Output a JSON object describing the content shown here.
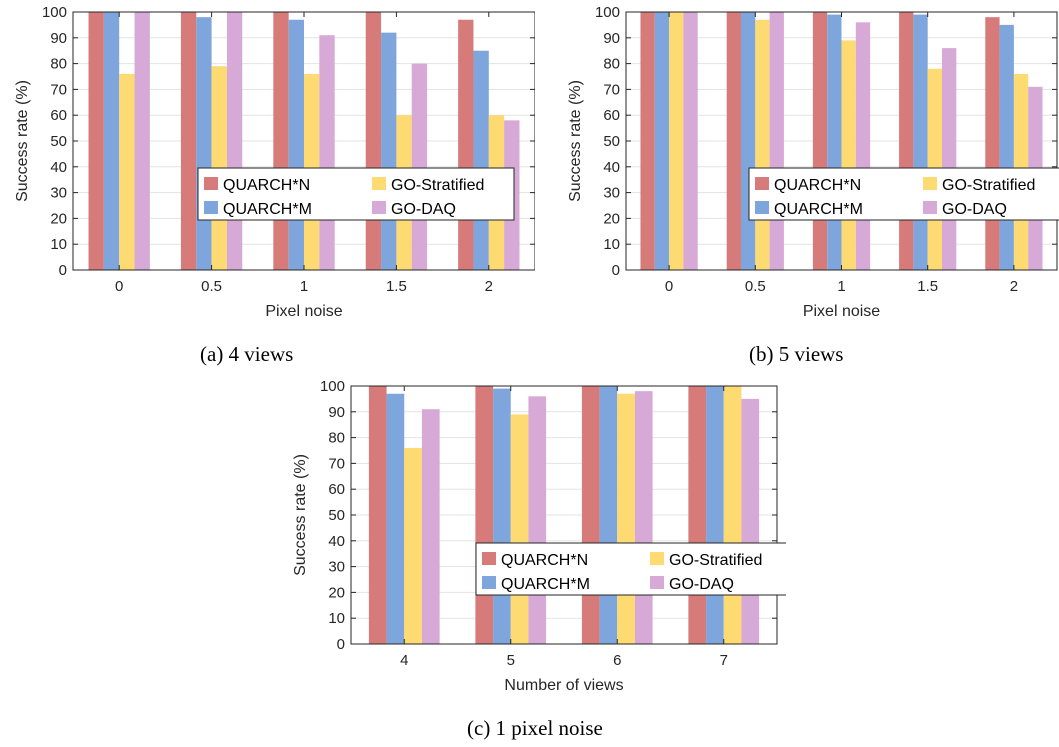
{
  "colors": {
    "QUARCH*N": "#d77a7a",
    "QUARCH*M": "#7ea6dc",
    "GO-Stratified": "#fddb72",
    "GO-DAQ": "#d6a9d6"
  },
  "legend": [
    "QUARCH*N",
    "GO-Stratified",
    "QUARCH*M",
    "GO-DAQ"
  ],
  "captions": [
    "(a) 4 views",
    "(b) 5 views",
    "(c) 1 pixel noise"
  ],
  "chart_data": [
    {
      "type": "bar",
      "caption": "(a) 4 views",
      "xlabel": "Pixel noise",
      "ylabel": "Success rate (%)",
      "ylim": [
        0,
        100
      ],
      "yticks": [
        0,
        10,
        20,
        30,
        40,
        50,
        60,
        70,
        80,
        90,
        100
      ],
      "categories": [
        "0",
        "0.5",
        "1",
        "1.5",
        "2"
      ],
      "grid": "y",
      "legend_position": "inside-right",
      "series": [
        {
          "name": "QUARCH*N",
          "values": [
            100,
            100,
            100,
            100,
            97
          ]
        },
        {
          "name": "QUARCH*M",
          "values": [
            100,
            98,
            97,
            92,
            85
          ]
        },
        {
          "name": "GO-Stratified",
          "values": [
            76,
            79,
            76,
            60,
            60
          ]
        },
        {
          "name": "GO-DAQ",
          "values": [
            100,
            100,
            91,
            80,
            58
          ]
        }
      ]
    },
    {
      "type": "bar",
      "caption": "(b) 5 views",
      "xlabel": "Pixel noise",
      "ylabel": "Success rate (%)",
      "ylim": [
        0,
        100
      ],
      "yticks": [
        0,
        10,
        20,
        30,
        40,
        50,
        60,
        70,
        80,
        90,
        100
      ],
      "categories": [
        "0",
        "0.5",
        "1",
        "1.5",
        "2"
      ],
      "grid": "y",
      "legend_position": "inside-right",
      "series": [
        {
          "name": "QUARCH*N",
          "values": [
            100,
            100,
            100,
            100,
            98
          ]
        },
        {
          "name": "QUARCH*M",
          "values": [
            100,
            100,
            99,
            99,
            95
          ]
        },
        {
          "name": "GO-Stratified",
          "values": [
            100,
            97,
            89,
            78,
            76
          ]
        },
        {
          "name": "GO-DAQ",
          "values": [
            100,
            100,
            96,
            86,
            71
          ]
        }
      ]
    },
    {
      "type": "bar",
      "caption": "(c) 1 pixel noise",
      "xlabel": "Number of views",
      "ylabel": "Success rate (%)",
      "ylim": [
        0,
        100
      ],
      "yticks": [
        0,
        10,
        20,
        30,
        40,
        50,
        60,
        70,
        80,
        90,
        100
      ],
      "categories": [
        "4",
        "5",
        "6",
        "7"
      ],
      "grid": "y",
      "legend_position": "inside-right",
      "series": [
        {
          "name": "QUARCH*N",
          "values": [
            100,
            100,
            100,
            100
          ]
        },
        {
          "name": "QUARCH*M",
          "values": [
            97,
            99,
            100,
            100
          ]
        },
        {
          "name": "GO-Stratified",
          "values": [
            76,
            89,
            97,
            100
          ]
        },
        {
          "name": "GO-DAQ",
          "values": [
            91,
            96,
            98,
            95
          ]
        }
      ]
    }
  ]
}
